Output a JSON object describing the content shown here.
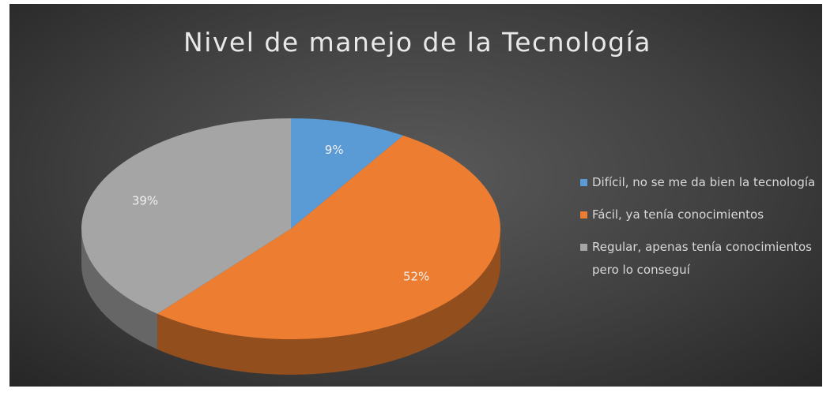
{
  "chart_data": {
    "type": "pie3d",
    "title": "Nivel de manejo de la Tecnología",
    "categories": [
      "Difícil, no se me da bien la tecnología",
      "Fácil, ya tenía conocimientos",
      "Regular, apenas tenía conocimientos pero lo conseguí"
    ],
    "values": [
      9,
      52,
      39
    ],
    "value_labels": [
      "9%",
      "52%",
      "39%"
    ],
    "colors": [
      "#5b9bd5",
      "#ed7d31",
      "#a5a5a5"
    ],
    "legend": "right"
  }
}
